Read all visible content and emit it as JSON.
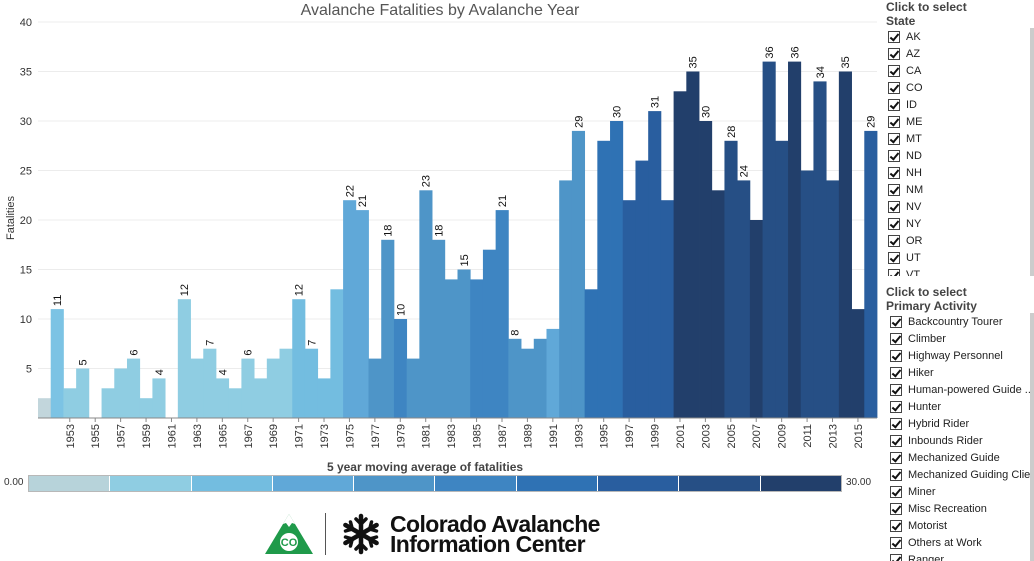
{
  "chart_data": {
    "type": "bar",
    "title": "Avalanche Fatalities by Avalanche Year",
    "ylabel": "Fatalities",
    "xlabel": "",
    "ylim": [
      0,
      40
    ],
    "yticks": [
      5,
      10,
      15,
      20,
      25,
      30,
      35,
      40
    ],
    "years": [
      1951,
      1952,
      1953,
      1954,
      1955,
      1956,
      1957,
      1958,
      1959,
      1960,
      1961,
      1962,
      1963,
      1964,
      1965,
      1966,
      1967,
      1968,
      1969,
      1970,
      1971,
      1972,
      1973,
      1974,
      1975,
      1976,
      1977,
      1978,
      1979,
      1980,
      1981,
      1982,
      1983,
      1984,
      1985,
      1986,
      1987,
      1988,
      1989,
      1990,
      1991,
      1992,
      1993,
      1994,
      1995,
      1996,
      1997,
      1998,
      1999,
      2000,
      2001,
      2002,
      2003,
      2004,
      2005,
      2006,
      2007,
      2008,
      2009,
      2010,
      2011,
      2012,
      2013,
      2014,
      2015,
      2016
    ],
    "values": [
      2,
      11,
      3,
      5,
      0,
      3,
      5,
      6,
      2,
      4,
      0,
      12,
      6,
      7,
      4,
      3,
      6,
      4,
      6,
      7,
      12,
      7,
      4,
      13,
      22,
      21,
      6,
      18,
      10,
      6,
      23,
      18,
      14,
      15,
      14,
      17,
      21,
      8,
      7,
      8,
      9,
      24,
      29,
      13,
      28,
      30,
      22,
      26,
      31,
      22,
      33,
      35,
      30,
      23,
      28,
      24,
      20,
      36,
      28,
      36,
      25,
      34,
      24,
      35,
      11,
      29
    ],
    "labeled_years": [
      1952,
      1954,
      1958,
      1960,
      1962,
      1964,
      1965,
      1967,
      1971,
      1972,
      1975,
      1976,
      1978,
      1979,
      1981,
      1982,
      1984,
      1987,
      1988,
      1993,
      1996,
      1999,
      2002,
      2003,
      2005,
      2006,
      2008,
      2010,
      2012,
      2014,
      2016
    ],
    "x_tick_labels": [
      "1953",
      "1955",
      "1957",
      "1959",
      "1961",
      "1963",
      "1965",
      "1967",
      "1969",
      "1971",
      "1973",
      "1975",
      "1977",
      "1979",
      "1981",
      "1983",
      "1985",
      "1987",
      "1989",
      "1991",
      "1993",
      "1995",
      "1997",
      "1999",
      "2001",
      "2003",
      "2005",
      "2007",
      "2009",
      "2011",
      "2013",
      "2015"
    ],
    "color_legend": {
      "title": "5 year moving average of fatalities",
      "min_label": "0.00",
      "max_label": "30.00",
      "colors": [
        "#b7d3da",
        "#8fcde2",
        "#73bde0",
        "#60a8d8",
        "#4e95c8",
        "#3e85c2",
        "#2f72b4",
        "#295e9f",
        "#264f85",
        "#223f6b"
      ]
    },
    "bar_colors": [
      "#c2d6dc",
      "#7cc3e4",
      "#8fcde2",
      "#8fcde2",
      "#8fcde2",
      "#8fcde2",
      "#8fcde2",
      "#8fcde2",
      "#8fcde2",
      "#8fcde2",
      "#8fcde2",
      "#8fcde2",
      "#8fcde2",
      "#8fcde2",
      "#8fcde2",
      "#8fcde2",
      "#8fcde2",
      "#8fcde2",
      "#8fcde2",
      "#8fcde2",
      "#73bde0",
      "#73bde0",
      "#73bde0",
      "#73bde0",
      "#60a8d8",
      "#60a8d8",
      "#4e95c8",
      "#4e95c8",
      "#3e85c2",
      "#4e95c8",
      "#4e95c8",
      "#4e95c8",
      "#4e95c8",
      "#4e95c8",
      "#3e85c2",
      "#3e85c2",
      "#3e85c2",
      "#4e95c8",
      "#4e95c8",
      "#4e95c8",
      "#60a8d8",
      "#4e95c8",
      "#4e95c8",
      "#2f72b4",
      "#2f72b4",
      "#2f72b4",
      "#295e9f",
      "#295e9f",
      "#295e9f",
      "#295e9f",
      "#223f6b",
      "#223f6b",
      "#223f6b",
      "#223f6b",
      "#264f85",
      "#264f85",
      "#223f6b",
      "#264f85",
      "#264f85",
      "#223f6b",
      "#264f85",
      "#264f85",
      "#264f85",
      "#223f6b",
      "#223f6b",
      "#295e9f"
    ]
  },
  "logo": {
    "badge_text": "CO",
    "name_line1": "Colorado Avalanche",
    "name_line2": "Information Center"
  },
  "state_filter": {
    "title_line1": "Click to select",
    "title_line2": "State",
    "items": [
      "AK",
      "AZ",
      "CA",
      "CO",
      "ID",
      "ME",
      "MT",
      "ND",
      "NH",
      "NM",
      "NV",
      "NY",
      "OR",
      "UT",
      "VT"
    ]
  },
  "activity_filter": {
    "title_line1": "Click to select",
    "title_line2": "Primary Activity",
    "items": [
      "Backcountry Tourer",
      "Climber",
      "Highway Personnel",
      "Hiker",
      "Human-powered Guide ..",
      "Hunter",
      "Hybrid Rider",
      "Inbounds Rider",
      "Mechanized Guide",
      "Mechanized Guiding Clie..",
      "Miner",
      "Misc Recreation",
      "Motorist",
      "Others at Work",
      "Ranger"
    ]
  }
}
